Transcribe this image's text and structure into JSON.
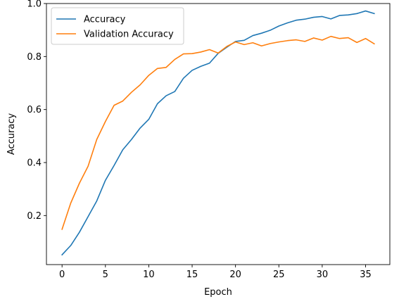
{
  "chart_data": {
    "type": "line",
    "title": "",
    "xlabel": "Epoch",
    "ylabel": "Accuracy",
    "xlim": [
      -1.8,
      37.8
    ],
    "ylim": [
      0.015,
      1.0
    ],
    "xticks": [
      0,
      5,
      10,
      15,
      20,
      25,
      30,
      35
    ],
    "yticks": [
      0.2,
      0.4,
      0.6,
      0.8,
      1.0
    ],
    "ytick_labels": [
      "0.2",
      "0.4",
      "0.6",
      "0.8",
      "1.0"
    ],
    "legend_position": "upper-left",
    "grid": false,
    "x": [
      0,
      1,
      2,
      3,
      4,
      5,
      6,
      7,
      8,
      9,
      10,
      11,
      12,
      13,
      14,
      15,
      16,
      17,
      18,
      19,
      20,
      21,
      22,
      23,
      24,
      25,
      26,
      27,
      28,
      29,
      30,
      31,
      32,
      33,
      34,
      35,
      36
    ],
    "series": [
      {
        "name": "Accuracy",
        "color": "#1f77b4",
        "values": [
          0.052,
          0.087,
          0.137,
          0.196,
          0.255,
          0.333,
          0.389,
          0.448,
          0.487,
          0.53,
          0.563,
          0.622,
          0.652,
          0.668,
          0.718,
          0.748,
          0.763,
          0.775,
          0.812,
          0.835,
          0.857,
          0.861,
          0.879,
          0.888,
          0.899,
          0.915,
          0.927,
          0.937,
          0.941,
          0.948,
          0.951,
          0.942,
          0.955,
          0.957,
          0.962,
          0.972,
          0.962
        ]
      },
      {
        "name": "Validation Accuracy",
        "color": "#ff7f0e",
        "values": [
          0.148,
          0.247,
          0.322,
          0.386,
          0.487,
          0.555,
          0.616,
          0.632,
          0.665,
          0.693,
          0.729,
          0.755,
          0.759,
          0.789,
          0.81,
          0.811,
          0.817,
          0.826,
          0.813,
          0.838,
          0.855,
          0.845,
          0.852,
          0.84,
          0.849,
          0.855,
          0.86,
          0.863,
          0.857,
          0.87,
          0.862,
          0.876,
          0.868,
          0.871,
          0.853,
          0.868,
          0.848
        ]
      }
    ]
  }
}
